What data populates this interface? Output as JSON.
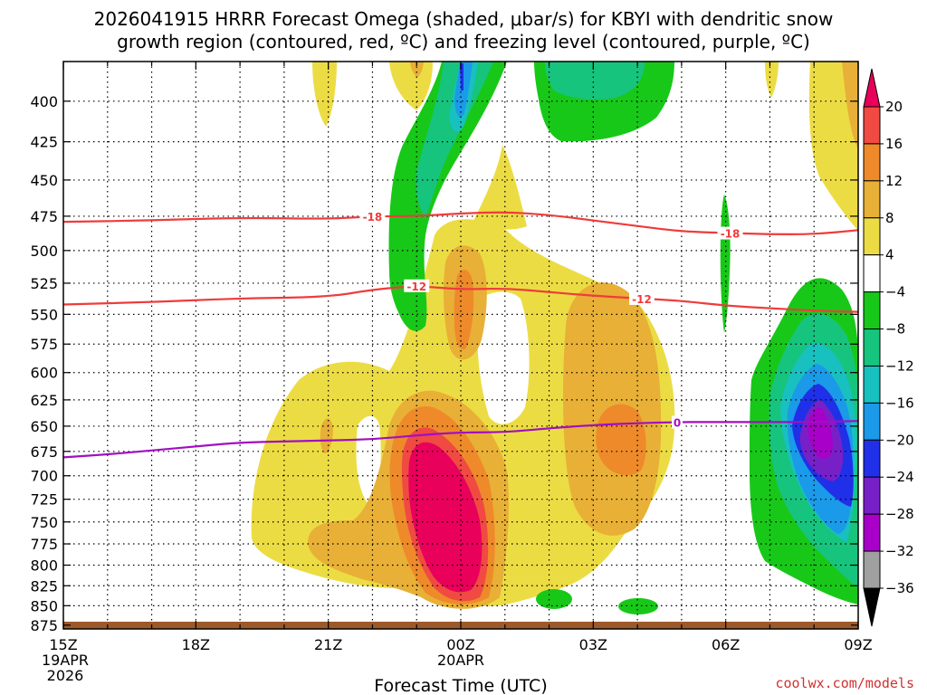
{
  "title_line1": "2026041915 HRRR Forecast Omega (shaded, μbar/s) for KBYI with dendritic snow",
  "title_line2": "growth region (contoured, red, ºC) and freezing level (contoured, purple, ºC)",
  "credit": "coolwx.com/models",
  "chart_data": {
    "type": "heatmap",
    "title": "2026041915 HRRR Forecast Omega (shaded, μbar/s) for KBYI with dendritic snow growth region (contoured, red, ºC) and freezing level (contoured, purple, ºC)",
    "xlabel": "Forecast Time (UTC)",
    "ylabel": "",
    "x_range_hours": [
      0,
      18
    ],
    "y_range_hpa": [
      377,
      880
    ],
    "y_ticks": [
      "400",
      "425",
      "450",
      "475",
      "500",
      "525",
      "550",
      "575",
      "600",
      "625",
      "650",
      "675",
      "700",
      "725",
      "750",
      "775",
      "800",
      "825",
      "850",
      "875"
    ],
    "x_ticks": [
      {
        "h": 0,
        "line1": "15Z",
        "line2": "19APR",
        "line3": "2026"
      },
      {
        "h": 3,
        "line1": "18Z",
        "line2": "",
        "line3": ""
      },
      {
        "h": 6,
        "line1": "21Z",
        "line2": "",
        "line3": ""
      },
      {
        "h": 9,
        "line1": "00Z",
        "line2": "20APR",
        "line3": ""
      },
      {
        "h": 12,
        "line1": "03Z",
        "line2": "",
        "line3": ""
      },
      {
        "h": 15,
        "line1": "06Z",
        "line2": "",
        "line3": ""
      },
      {
        "h": 18,
        "line1": "09Z",
        "line2": "",
        "line3": ""
      }
    ],
    "colorbar": {
      "levels": [
        "20",
        "16",
        "12",
        "8",
        "4",
        "−4",
        "−8",
        "−12",
        "−16",
        "−20",
        "−24",
        "−28",
        "−32",
        "−36"
      ],
      "colors": [
        "#e8005a",
        "#f04a42",
        "#ee8a2a",
        "#e8b036",
        "#ecdc44",
        "#ffffff",
        "#18c818",
        "#16c47e",
        "#18c0c0",
        "#1a9ae8",
        "#2030e8",
        "#7820c8",
        "#a800c8",
        "#a0a0a0"
      ]
    },
    "omega_features": [
      {
        "name": "positive-max-near-00z",
        "hour": 8.8,
        "pressure": 745,
        "value": 20
      },
      {
        "name": "positive-area-0330z",
        "hour": 12.6,
        "pressure": 665,
        "value": 12
      },
      {
        "name": "negative-max-08z",
        "hour": 17.1,
        "pressure": 665,
        "value": -28
      },
      {
        "name": "negative-area-upper-00z",
        "hour": 9.0,
        "pressure": 400,
        "value": -16
      },
      {
        "name": "positive-band-upper-09z",
        "hour": 18.0,
        "pressure": 420,
        "value": 8
      }
    ],
    "contours": [
      {
        "name": "dgz-minus-18",
        "label": "-18",
        "color": "#ee3c3c",
        "points": [
          [
            0,
            479
          ],
          [
            2,
            478
          ],
          [
            4,
            476
          ],
          [
            6,
            477
          ],
          [
            7,
            475
          ],
          [
            8,
            475
          ],
          [
            9,
            473
          ],
          [
            10,
            472
          ],
          [
            11,
            474
          ],
          [
            12,
            478
          ],
          [
            13,
            482
          ],
          [
            14,
            486
          ],
          [
            15,
            487
          ],
          [
            16,
            488
          ],
          [
            17,
            488
          ],
          [
            18,
            485
          ]
        ],
        "label_hours": [
          7.0,
          15.1
        ]
      },
      {
        "name": "dgz-minus-12",
        "label": "-12",
        "color": "#ee3c3c",
        "points": [
          [
            0,
            542
          ],
          [
            2,
            540
          ],
          [
            4,
            537
          ],
          [
            6,
            536
          ],
          [
            7,
            530
          ],
          [
            8,
            527
          ],
          [
            9,
            530
          ],
          [
            10,
            529
          ],
          [
            11,
            532
          ],
          [
            12,
            535
          ],
          [
            13,
            537
          ],
          [
            14,
            539
          ],
          [
            15,
            543
          ],
          [
            16,
            545
          ],
          [
            17,
            547
          ],
          [
            18,
            548
          ]
        ],
        "label_hours": [
          8.0,
          13.1
        ]
      },
      {
        "name": "freezing-level-0",
        "label": "0",
        "color": "#a010c0",
        "points": [
          [
            0,
            681
          ],
          [
            1,
            678
          ],
          [
            2,
            674
          ],
          [
            3,
            670
          ],
          [
            4,
            666
          ],
          [
            5,
            665
          ],
          [
            6,
            664
          ],
          [
            7,
            663
          ],
          [
            8,
            659
          ],
          [
            9,
            656
          ],
          [
            10,
            656
          ],
          [
            11,
            652
          ],
          [
            12,
            649
          ],
          [
            13,
            647
          ],
          [
            14,
            646
          ],
          [
            15,
            646
          ],
          [
            16,
            646
          ],
          [
            17,
            646
          ],
          [
            18,
            645
          ]
        ],
        "label_hours": [
          13.9
        ]
      }
    ]
  }
}
